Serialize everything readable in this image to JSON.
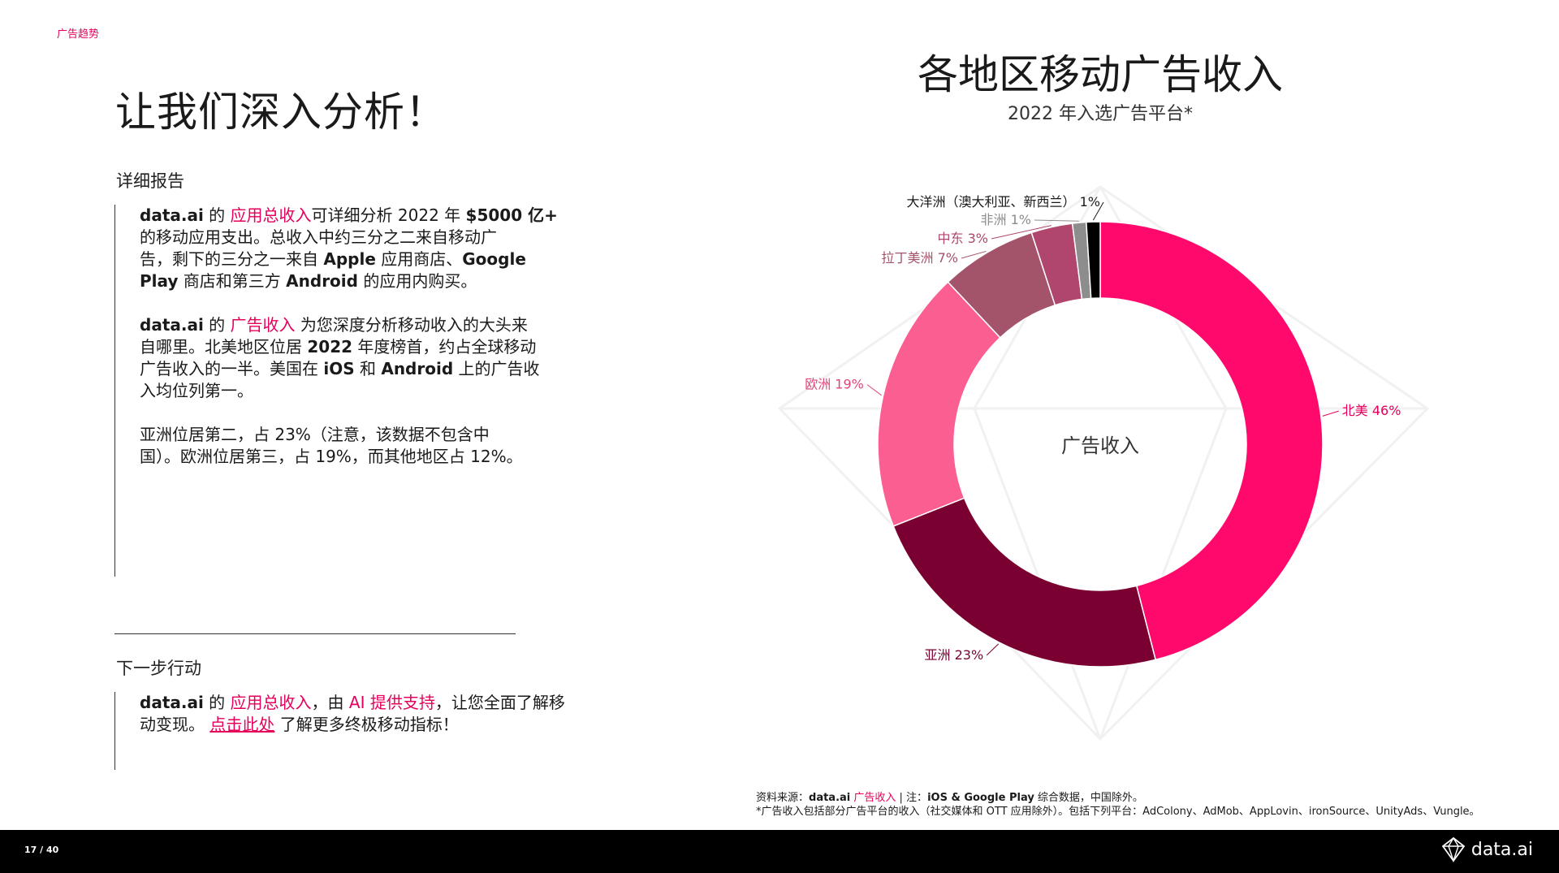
{
  "header": {
    "section_tag": "广告趋势",
    "title": "让我们深入分析！"
  },
  "left": {
    "report_label": "详细报告",
    "report_paragraphs": [
      [
        [
          {
            "text": "data.ai",
            "style": "bold"
          },
          {
            "text": " 的 "
          },
          {
            "text": "应用总收入",
            "style": "pink"
          },
          {
            "text": "可详细分析 2022 年 "
          },
          {
            "text": "$5000 亿+",
            "style": "bold"
          }
        ],
        [
          {
            "text": "的移动应用支出。总收入中约三分之二来自移动广"
          }
        ],
        [
          {
            "text": "告，剩下的三分之一来自 "
          },
          {
            "text": "Apple",
            "style": "bold"
          },
          {
            "text": " 应用商店、"
          },
          {
            "text": "Google",
            "style": "bold"
          }
        ],
        [
          {
            "text": "Play",
            "style": "bold"
          },
          {
            "text": " 商店和第三方 "
          },
          {
            "text": "Android",
            "style": "bold"
          },
          {
            "text": " 的应用内购买。"
          }
        ]
      ],
      [
        [
          {
            "text": "data.ai",
            "style": "bold"
          },
          {
            "text": " 的 "
          },
          {
            "text": "广告收入",
            "style": "pink"
          },
          {
            "text": " 为您深度分析移动收入的大头来"
          }
        ],
        [
          {
            "text": "自哪里。北美地区位居 "
          },
          {
            "text": "2022",
            "style": "bold"
          },
          {
            "text": " 年度榜首，约占全球移动"
          }
        ],
        [
          {
            "text": "广告收入的一半。美国在 "
          },
          {
            "text": "iOS",
            "style": "bold"
          },
          {
            "text": " 和 "
          },
          {
            "text": "Android",
            "style": "bold"
          },
          {
            "text": " 上的广告收"
          }
        ],
        [
          {
            "text": "入均位列第一。"
          }
        ]
      ],
      [
        [
          {
            "text": "亚洲位居第二，占 23%（注意，该数据不包含中"
          }
        ],
        [
          {
            "text": "国）。欧洲位居第三，占 19%，而其他地区占 12%。"
          }
        ]
      ]
    ],
    "next_label": "下一步行动",
    "next_paragraph": [
      [
        {
          "text": "data.ai",
          "style": "bold"
        },
        {
          "text": " 的 "
        },
        {
          "text": "应用总收入",
          "style": "pink"
        },
        {
          "text": "，由 "
        },
        {
          "text": "AI 提供支持",
          "style": "pink"
        },
        {
          "text": "，让您全面了解移"
        }
      ],
      [
        {
          "text": "动变现。 "
        },
        {
          "text": "点击此处",
          "style": "pink-u"
        },
        {
          "text": " 了解更多终极移动指标！"
        }
      ]
    ]
  },
  "chart_data": {
    "type": "pie",
    "variant": "donut",
    "title": "各地区移动广告收入",
    "subtitle": "2022 年入选广告平台*",
    "center_label": "广告收入",
    "slices": [
      {
        "label": "北美",
        "value": 46,
        "color": "#ff0a6c",
        "label_color": "#e6005c"
      },
      {
        "label": "亚洲",
        "value": 23,
        "color": "#7a0032",
        "label_color": "#7a0032"
      },
      {
        "label": "欧洲",
        "value": 19,
        "color": "#fb5f91",
        "label_color": "#e0457a"
      },
      {
        "label": "拉丁美洲",
        "value": 7,
        "color": "#a3546a",
        "label_color": "#a3546a"
      },
      {
        "label": "中东",
        "value": 3,
        "color": "#b0456e",
        "label_color": "#b0456e"
      },
      {
        "label": "非洲",
        "value": 1,
        "color": "#8d8d8d",
        "label_color": "#8d8d8d"
      },
      {
        "label": "大洋洲（澳大利亚、新西兰）",
        "value": 1,
        "color": "#000000",
        "label_color": "#1a1a1a"
      }
    ]
  },
  "footer": {
    "source_prefix": "资料来源：",
    "source_brand": "data.ai",
    "source_link": "广告收入",
    "source_sep": " | 注：",
    "source_platforms": "iOS & Google Play",
    "source_suffix": " 综合数据，中国除外。",
    "note": "*广告收入包括部分广告平台的收入（社交媒体和 OTT 应用除外）。包括下列平台：AdColony、AdMob、AppLovin、ironSource、UnityAds、Vungle。",
    "page_number": "17 / 40",
    "logo_text": "data.ai"
  }
}
